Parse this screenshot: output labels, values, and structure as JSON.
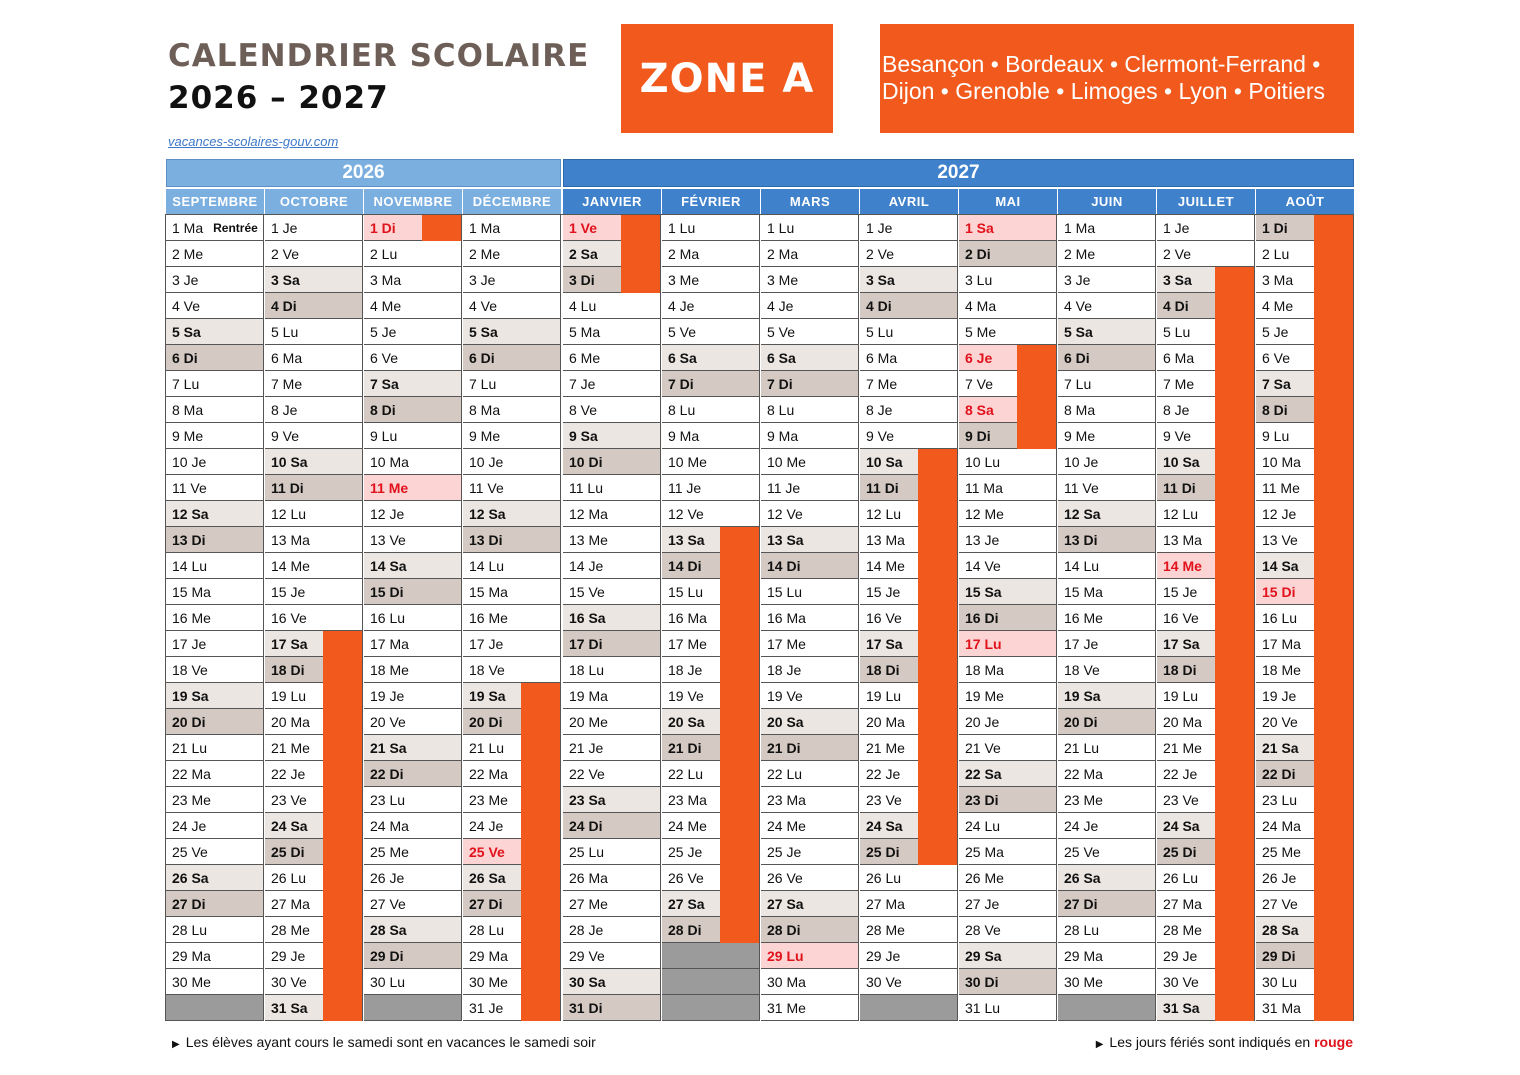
{
  "header": {
    "title_line1": "CALENDRIER SCOLAIRE",
    "title_line2": "2026 – 2027",
    "link": "vacances-scolaires-gouv.com",
    "zone": "ZONE A",
    "cities_line1": "Besançon • Bordeaux • Clermont-Ferrand •",
    "cities_line2": "Dijon • Grenoble • Limoges • Lyon • Poitiers"
  },
  "years": {
    "first": "2026",
    "second": "2027"
  },
  "colors": {
    "vacation": "#f25a1d",
    "holiday_text": "#e0121b",
    "year_2026": "#7bafe0",
    "year_2027": "#3f82cb"
  },
  "months": [
    {
      "name": "SEPTEMBRE",
      "days": 30,
      "start": 1,
      "holidays": [],
      "vacation": [],
      "notes": {
        "1": "Rentrée"
      }
    },
    {
      "name": "OCTOBRE",
      "days": 31,
      "start": 3,
      "holidays": [],
      "vacation": [
        [
          17,
          31
        ]
      ]
    },
    {
      "name": "NOVEMBRE",
      "days": 30,
      "start": 6,
      "holidays": [
        1,
        11
      ],
      "vacation": [
        [
          1,
          1
        ]
      ]
    },
    {
      "name": "DÉCEMBRE",
      "days": 31,
      "start": 1,
      "holidays": [
        25
      ],
      "vacation": [
        [
          19,
          31
        ]
      ]
    },
    {
      "name": "JANVIER",
      "days": 31,
      "start": 4,
      "holidays": [
        1
      ],
      "vacation": [
        [
          1,
          3
        ]
      ]
    },
    {
      "name": "FÉVRIER",
      "days": 28,
      "start": 0,
      "holidays": [],
      "vacation": [
        [
          13,
          28
        ]
      ]
    },
    {
      "name": "MARS",
      "days": 31,
      "start": 0,
      "holidays": [
        29
      ],
      "vacation": []
    },
    {
      "name": "AVRIL",
      "days": 30,
      "start": 3,
      "holidays": [],
      "vacation": [
        [
          10,
          25
        ]
      ]
    },
    {
      "name": "MAI",
      "days": 31,
      "start": 5,
      "holidays": [
        1,
        6,
        8,
        17
      ],
      "vacation": [
        [
          6,
          9
        ]
      ]
    },
    {
      "name": "JUIN",
      "days": 30,
      "start": 1,
      "holidays": [],
      "vacation": []
    },
    {
      "name": "JUILLET",
      "days": 31,
      "start": 3,
      "holidays": [
        14
      ],
      "vacation": [
        [
          3,
          31
        ]
      ]
    },
    {
      "name": "AOÛT",
      "days": 31,
      "start": 6,
      "holidays": [
        15
      ],
      "vacation": [
        [
          1,
          31
        ]
      ]
    }
  ],
  "day_abbr": [
    "Lu",
    "Ma",
    "Me",
    "Je",
    "Ve",
    "Sa",
    "Di"
  ],
  "notes": {
    "left": "Les élèves ayant cours le samedi sont en vacances le samedi soir",
    "right_prefix": "Les jours fériés sont indiqués en",
    "right_red": "rouge"
  }
}
